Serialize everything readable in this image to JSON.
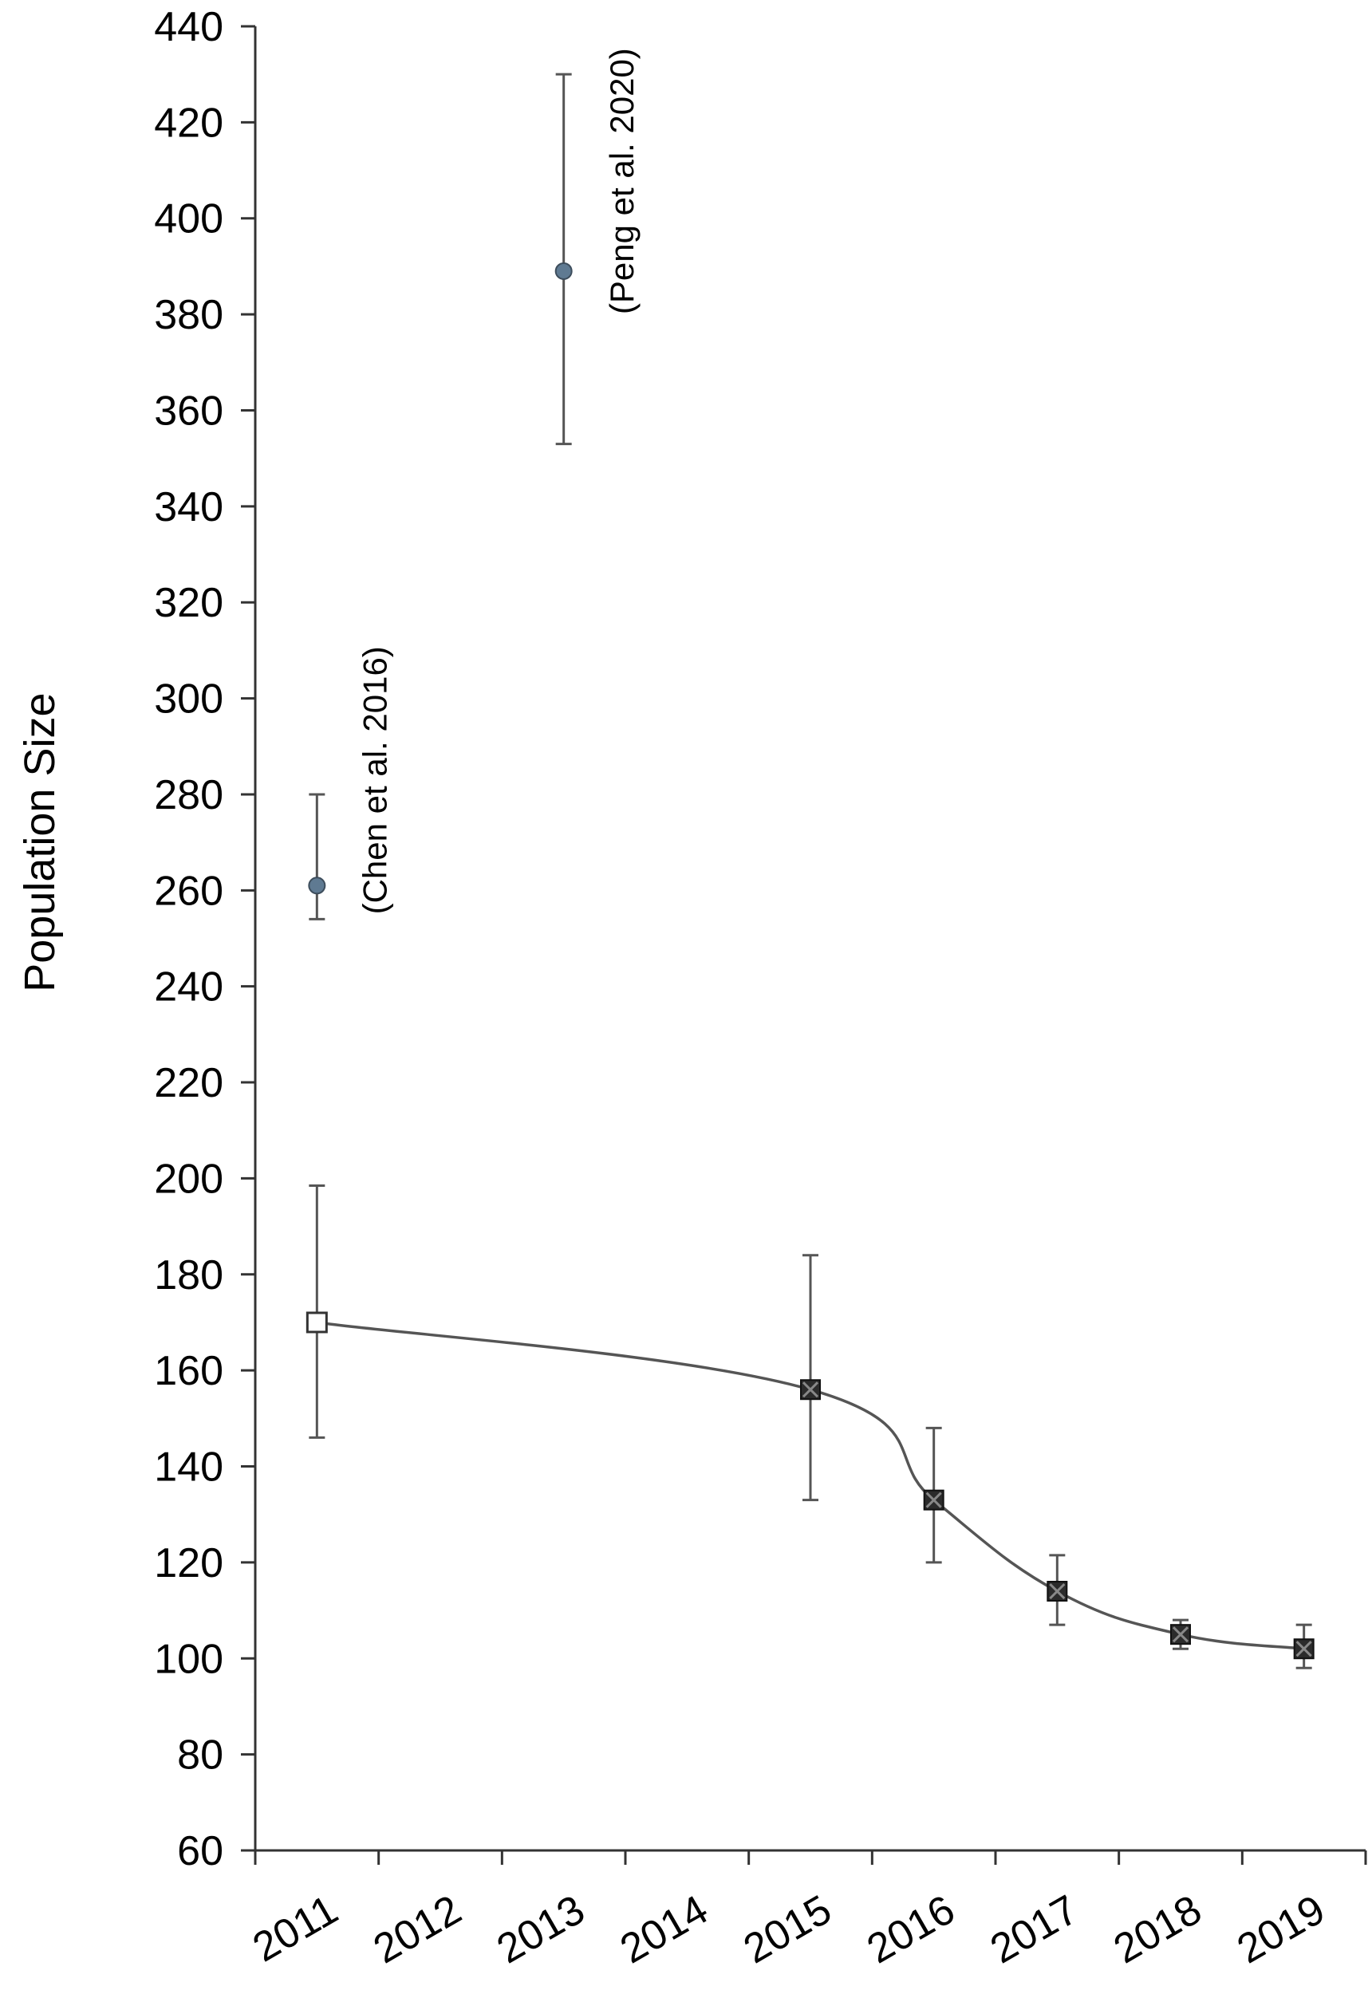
{
  "chart_data": {
    "type": "scatter",
    "title": "",
    "xlabel": "",
    "ylabel": "Population Size",
    "categories": [
      "2011",
      "2012",
      "2013",
      "2014",
      "2015",
      "2016",
      "2017",
      "2018",
      "2019"
    ],
    "ylim": [
      60,
      440
    ],
    "yticks": [
      60,
      80,
      100,
      120,
      140,
      160,
      180,
      200,
      220,
      240,
      260,
      280,
      300,
      320,
      340,
      360,
      380,
      400,
      420,
      440
    ],
    "grid": false,
    "legend": "none",
    "series": [
      {
        "marker": "open-square",
        "color": "#ffffff",
        "points": [
          {
            "x": 2011.5,
            "y": 170,
            "err_low": 146,
            "err_high": 198.5
          }
        ]
      },
      {
        "marker": "filled-square-x",
        "color": "#2b2b2b",
        "line": "smooth",
        "points": [
          {
            "x": 2015.5,
            "y": 156,
            "err_low": 133,
            "err_high": 184
          },
          {
            "x": 2016.5,
            "y": 133,
            "err_low": 120,
            "err_high": 148
          },
          {
            "x": 2017.5,
            "y": 114,
            "err_low": 107,
            "err_high": 121.5
          },
          {
            "x": 2018.5,
            "y": 105,
            "err_low": 102,
            "err_high": 108
          },
          {
            "x": 2019.5,
            "y": 102,
            "err_low": 98,
            "err_high": 107
          }
        ]
      },
      {
        "marker": "circle",
        "color": "#5f7a92",
        "points": [
          {
            "x": 2011.5,
            "y": 261,
            "err_low": 254,
            "err_high": 280
          },
          {
            "x": 2013.5,
            "y": 389,
            "err_low": 353,
            "err_high": 430
          }
        ]
      }
    ],
    "annotations": [
      {
        "text": "(Chen et al. 2016)",
        "x": 2012.0,
        "y": 255
      },
      {
        "text": "(Peng et al. 2020)",
        "x": 2014.0,
        "y": 380
      }
    ],
    "connector_color": "#555555"
  }
}
